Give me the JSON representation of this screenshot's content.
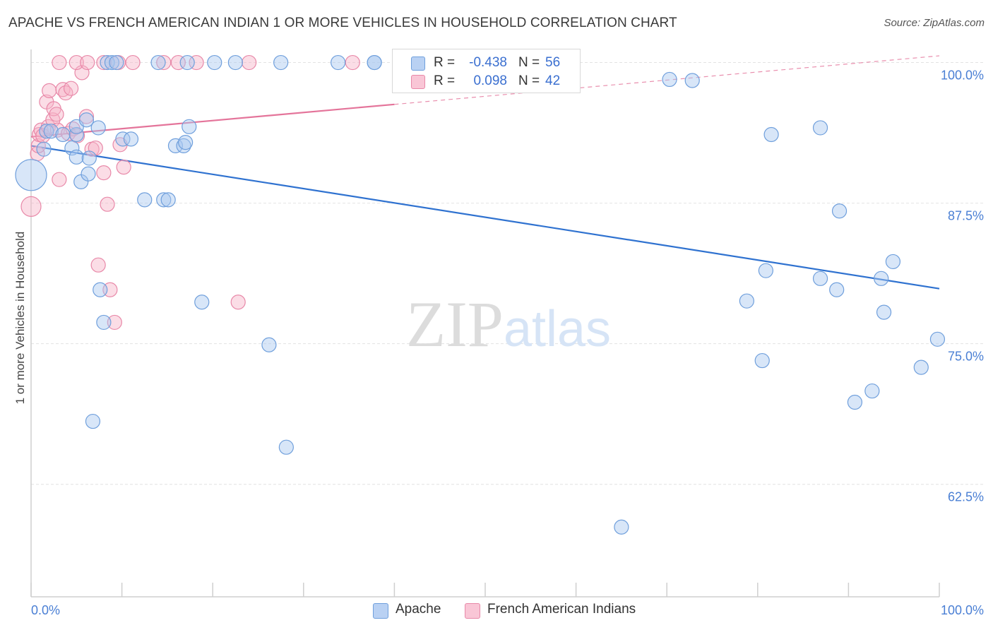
{
  "chart_data": {
    "type": "scatter",
    "title": "APACHE VS FRENCH AMERICAN INDIAN 1 OR MORE VEHICLES IN HOUSEHOLD CORRELATION CHART",
    "source": "Source: ZipAtlas.com",
    "xlabel": "",
    "ylabel": "1 or more Vehicles in Household",
    "xlim": [
      0,
      100
    ],
    "ylim": [
      52.5,
      100.6
    ],
    "x_tick_labels": [
      "0.0%",
      "100.0%"
    ],
    "y_ticks": [
      62.5,
      75.0,
      87.5,
      100.0
    ],
    "y_tick_labels": [
      "62.5%",
      "75.0%",
      "87.5%",
      "100.0%"
    ],
    "grid": true,
    "watermark": {
      "part1": "ZIP",
      "part2": "atlas"
    },
    "legend": {
      "r_label": "R =",
      "n_label": "N =",
      "entries": [
        {
          "series": "Apache",
          "r": "-0.438",
          "n": "56"
        },
        {
          "series": "French American Indians",
          "r": "0.098",
          "n": "42"
        }
      ]
    },
    "series": [
      {
        "name": "Apache",
        "fill": "#a9c7ef",
        "stroke": "#6f9fdc",
        "trend_color": "#2f72d0",
        "trend": {
          "x0": 0,
          "y0": 92.6,
          "x1": 100,
          "y1": 79.9,
          "dashed_from": null
        },
        "points": [
          [
            0.0,
            90.0,
            22
          ],
          [
            1.7,
            93.9,
            10
          ],
          [
            1.4,
            92.3,
            10
          ],
          [
            2.2,
            93.9,
            10
          ],
          [
            3.5,
            93.6,
            10
          ],
          [
            5.0,
            93.6,
            10
          ],
          [
            5.0,
            94.3,
            10
          ],
          [
            4.5,
            92.4,
            10
          ],
          [
            6.1,
            94.9,
            10
          ],
          [
            5.0,
            91.6,
            10
          ],
          [
            7.4,
            94.2,
            10
          ],
          [
            6.4,
            91.5,
            10
          ],
          [
            5.5,
            89.4,
            10
          ],
          [
            6.3,
            90.1,
            10
          ],
          [
            7.6,
            79.8,
            10
          ],
          [
            8.0,
            76.9,
            10
          ],
          [
            6.8,
            68.1,
            10
          ],
          [
            8.4,
            100.0,
            10
          ],
          [
            8.9,
            100.0,
            10
          ],
          [
            9.4,
            100.0,
            10
          ],
          [
            10.1,
            93.2,
            10
          ],
          [
            11.0,
            93.2,
            10
          ],
          [
            12.5,
            87.8,
            10
          ],
          [
            14.6,
            87.8,
            10
          ],
          [
            15.1,
            87.8,
            10
          ],
          [
            15.9,
            92.6,
            10
          ],
          [
            16.8,
            92.6,
            10
          ],
          [
            17.0,
            92.9,
            10
          ],
          [
            17.4,
            94.3,
            10
          ],
          [
            18.8,
            78.7,
            10
          ],
          [
            14.0,
            100.0,
            10
          ],
          [
            17.2,
            100.0,
            10
          ],
          [
            20.2,
            100.0,
            10
          ],
          [
            22.5,
            100.0,
            10
          ],
          [
            26.2,
            74.9,
            10
          ],
          [
            27.5,
            100.0,
            10
          ],
          [
            28.1,
            65.8,
            10
          ],
          [
            33.8,
            100.0,
            10
          ],
          [
            37.8,
            100.0,
            10
          ],
          [
            37.8,
            100.0,
            10
          ],
          [
            65.0,
            58.7,
            10
          ],
          [
            70.3,
            98.5,
            10
          ],
          [
            72.8,
            98.4,
            10
          ],
          [
            78.8,
            78.8,
            10
          ],
          [
            80.5,
            73.5,
            10
          ],
          [
            80.9,
            81.5,
            10
          ],
          [
            81.5,
            93.6,
            10
          ],
          [
            86.9,
            80.8,
            10
          ],
          [
            86.9,
            94.2,
            10
          ],
          [
            88.7,
            79.8,
            10
          ],
          [
            89.0,
            86.8,
            10
          ],
          [
            90.7,
            69.8,
            10
          ],
          [
            92.6,
            70.8,
            10
          ],
          [
            93.6,
            80.8,
            10
          ],
          [
            93.9,
            77.8,
            10
          ],
          [
            94.9,
            82.3,
            10
          ],
          [
            98.0,
            72.9,
            10
          ],
          [
            99.8,
            75.4,
            10
          ]
        ]
      },
      {
        "name": "French American Indians",
        "fill": "#f6b3c8",
        "stroke": "#e888a8",
        "trend_color": "#e4749a",
        "trend": {
          "x0": 0,
          "y0": 93.4,
          "x1": 100,
          "y1": 100.6,
          "dashed_from": 40
        },
        "points": [
          [
            0.0,
            87.2,
            14
          ],
          [
            0.7,
            91.9,
            10
          ],
          [
            0.8,
            92.6,
            10
          ],
          [
            0.9,
            93.6,
            10
          ],
          [
            1.1,
            94.0,
            10
          ],
          [
            1.3,
            93.5,
            10
          ],
          [
            1.7,
            96.5,
            10
          ],
          [
            1.9,
            94.3,
            10
          ],
          [
            2.0,
            97.5,
            10
          ],
          [
            2.4,
            94.9,
            10
          ],
          [
            2.5,
            95.9,
            10
          ],
          [
            2.8,
            95.4,
            10
          ],
          [
            2.9,
            94.0,
            10
          ],
          [
            3.1,
            89.6,
            10
          ],
          [
            3.5,
            97.6,
            10
          ],
          [
            3.8,
            97.3,
            10
          ],
          [
            4.1,
            93.7,
            10
          ],
          [
            4.4,
            97.7,
            10
          ],
          [
            4.6,
            94.1,
            10
          ],
          [
            5.1,
            93.5,
            10
          ],
          [
            5.6,
            99.1,
            10
          ],
          [
            6.1,
            95.2,
            10
          ],
          [
            6.7,
            92.3,
            10
          ],
          [
            7.1,
            92.4,
            10
          ],
          [
            7.4,
            82.0,
            10
          ],
          [
            8.0,
            90.2,
            10
          ],
          [
            8.4,
            87.4,
            10
          ],
          [
            8.7,
            79.8,
            10
          ],
          [
            9.2,
            76.9,
            10
          ],
          [
            9.8,
            92.7,
            10
          ],
          [
            10.2,
            90.7,
            10
          ],
          [
            3.1,
            100.0,
            10
          ],
          [
            5.0,
            100.0,
            10
          ],
          [
            6.2,
            100.0,
            10
          ],
          [
            8.0,
            100.0,
            10
          ],
          [
            9.6,
            100.0,
            10
          ],
          [
            11.2,
            100.0,
            10
          ],
          [
            14.6,
            100.0,
            10
          ],
          [
            16.2,
            100.0,
            10
          ],
          [
            18.2,
            100.0,
            10
          ],
          [
            22.8,
            78.7,
            10
          ],
          [
            24.0,
            100.0,
            10
          ],
          [
            35.4,
            100.0,
            10
          ]
        ]
      }
    ]
  }
}
